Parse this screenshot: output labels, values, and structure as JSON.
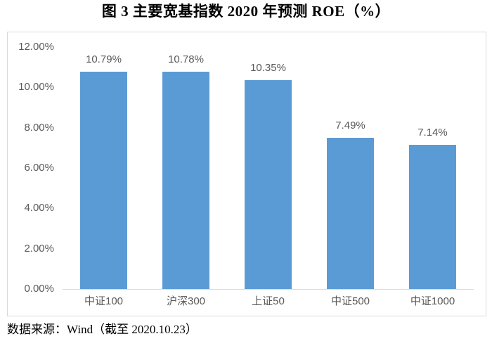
{
  "figure": {
    "title": "图 3  主要宽基指数 2020 年预测 ROE（%）",
    "source": "数据来源：Wind（截至 2020.10.23）"
  },
  "chart_data": {
    "type": "bar",
    "title": "图 3  主要宽基指数 2020 年预测 ROE（%）",
    "categories": [
      "中证100",
      "沪深300",
      "上证50",
      "中证500",
      "中证1000"
    ],
    "values": [
      10.79,
      10.78,
      10.35,
      7.49,
      7.14
    ],
    "data_labels": [
      "10.79%",
      "10.78%",
      "10.35%",
      "7.49%",
      "7.14%"
    ],
    "y_ticks": [
      {
        "value": 0,
        "label": "0.00%"
      },
      {
        "value": 2,
        "label": "2.00%"
      },
      {
        "value": 4,
        "label": "4.00%"
      },
      {
        "value": 6,
        "label": "6.00%"
      },
      {
        "value": 8,
        "label": "8.00%"
      },
      {
        "value": 10,
        "label": "10.00%"
      },
      {
        "value": 12,
        "label": "12.00%"
      }
    ],
    "ylim": [
      0,
      12
    ],
    "xlabel": "",
    "ylabel": "",
    "grid": false,
    "legend": null,
    "colors": {
      "bar": "#5B9BD5",
      "tick_label": "#595959",
      "data_label": "#595959",
      "axis_line": "#D9D9D9",
      "chart_border": "#D9D9D9"
    },
    "source": "数据来源：Wind（截至 2020.10.23）"
  }
}
